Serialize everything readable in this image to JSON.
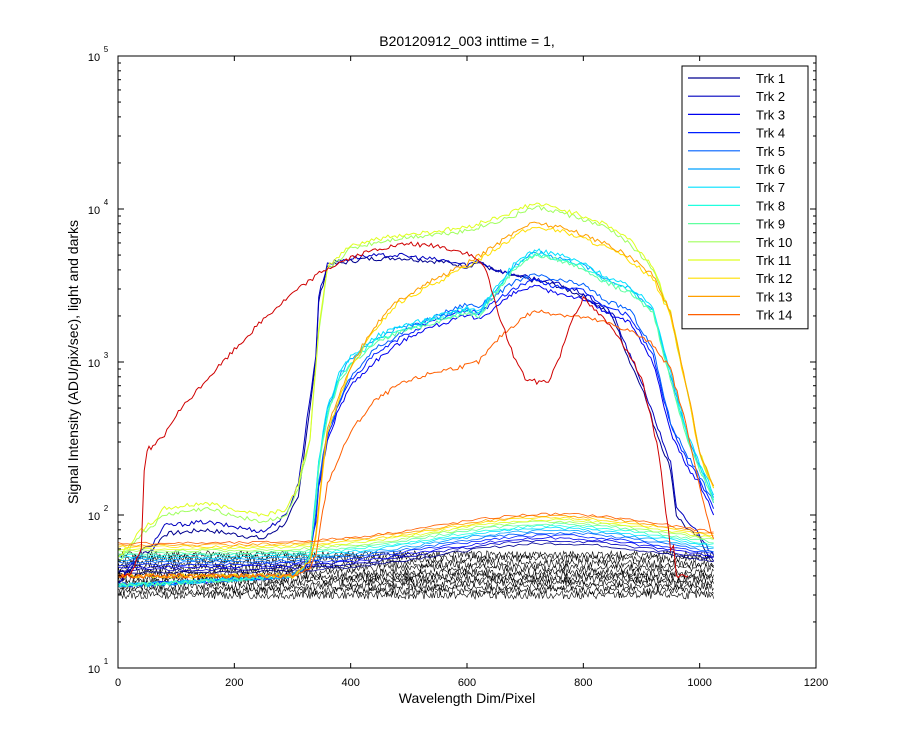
{
  "chart_data": {
    "type": "line",
    "title": "B20120912_003 inttime = 1,",
    "xlabel": "Wavelength Dim/Pixel",
    "ylabel": "Signal Intensity (ADU/pix/sec), light and darks",
    "xlim": [
      0,
      1200
    ],
    "ylim": [
      10,
      100000
    ],
    "yscale": "log",
    "grid": false,
    "legend_position": "top-right",
    "x_ticks": [
      "0",
      "200",
      "400",
      "600",
      "800",
      "1000",
      "1200"
    ],
    "y_ticks": [
      {
        "base": "10",
        "exp": "1"
      },
      {
        "base": "10",
        "exp": "2"
      },
      {
        "base": "10",
        "exp": "3"
      },
      {
        "base": "10",
        "exp": "4"
      },
      {
        "base": "10",
        "exp": "5"
      }
    ],
    "series": [
      {
        "name": "Trk 1",
        "color": "#00008f",
        "x": [
          0,
          40,
          60,
          80,
          150,
          250,
          290,
          300,
          310,
          340,
          345,
          360,
          380,
          420,
          480,
          560,
          600,
          620,
          650,
          700,
          750,
          800,
          850,
          880,
          900,
          920,
          940,
          950,
          960,
          980,
          1000,
          1015,
          1024
        ],
        "y": [
          35,
          55,
          60,
          75,
          80,
          70,
          90,
          110,
          130,
          1000,
          2500,
          4200,
          4400,
          4700,
          4800,
          4500,
          4200,
          4500,
          3900,
          3500,
          3200,
          2700,
          2000,
          1000,
          700,
          400,
          250,
          200,
          100,
          80,
          70,
          55,
          50
        ]
      },
      {
        "name": "Trk 2",
        "color": "#0000bf",
        "x": [
          0,
          40,
          60,
          80,
          150,
          250,
          290,
          300,
          310,
          340,
          345,
          360,
          380,
          420,
          480,
          560,
          600,
          620,
          650,
          700,
          750,
          800,
          850,
          880,
          900,
          920,
          940,
          950,
          960,
          980,
          1000,
          1015,
          1024
        ],
        "y": [
          36,
          58,
          65,
          85,
          90,
          78,
          100,
          130,
          160,
          1100,
          2700,
          4400,
          4600,
          4900,
          5000,
          4600,
          4300,
          4600,
          4000,
          3600,
          3300,
          2800,
          2100,
          1100,
          750,
          450,
          280,
          220,
          110,
          90,
          75,
          60,
          55
        ]
      },
      {
        "name": "Trk 3",
        "color": "#0000ef",
        "x": [
          0,
          40,
          300,
          320,
          330,
          340,
          345,
          360,
          380,
          400,
          440,
          480,
          520,
          560,
          600,
          620,
          650,
          680,
          700,
          720,
          740,
          760,
          800,
          840,
          880,
          920,
          950,
          980,
          1000,
          1015,
          1024
        ],
        "y": [
          35,
          35,
          40,
          45,
          55,
          90,
          150,
          300,
          500,
          700,
          1000,
          1300,
          1600,
          1800,
          2000,
          1900,
          2300,
          2800,
          3000,
          3100,
          2900,
          2800,
          2600,
          2100,
          1800,
          1000,
          350,
          200,
          160,
          120,
          100
        ]
      },
      {
        "name": "Trk 4",
        "color": "#0020ff",
        "x": [
          0,
          40,
          300,
          320,
          330,
          340,
          345,
          360,
          380,
          400,
          440,
          480,
          520,
          560,
          600,
          620,
          650,
          680,
          700,
          720,
          740,
          760,
          800,
          840,
          880,
          920,
          950,
          980,
          1000,
          1015,
          1024
        ],
        "y": [
          35,
          35,
          40,
          45,
          55,
          95,
          160,
          320,
          540,
          760,
          1100,
          1400,
          1700,
          1950,
          2200,
          2100,
          2500,
          3000,
          3300,
          3400,
          3200,
          3100,
          2900,
          2300,
          2000,
          1100,
          380,
          220,
          170,
          130,
          110
        ]
      },
      {
        "name": "Trk 5",
        "color": "#0060ff",
        "x": [
          0,
          40,
          300,
          320,
          330,
          340,
          345,
          360,
          380,
          400,
          440,
          480,
          520,
          560,
          600,
          620,
          650,
          680,
          700,
          720,
          740,
          760,
          800,
          840,
          880,
          920,
          950,
          980,
          1000,
          1015,
          1024
        ],
        "y": [
          35,
          35,
          40,
          45,
          55,
          100,
          170,
          340,
          560,
          800,
          1200,
          1500,
          1800,
          2100,
          2400,
          2300,
          2750,
          3300,
          3600,
          3700,
          3500,
          3400,
          3200,
          2500,
          2200,
          1200,
          400,
          240,
          180,
          140,
          120
        ]
      },
      {
        "name": "Trk 6",
        "color": "#00a0ff",
        "x": [
          0,
          40,
          300,
          320,
          330,
          340,
          345,
          360,
          380,
          400,
          440,
          480,
          520,
          560,
          600,
          620,
          650,
          680,
          700,
          720,
          740,
          760,
          800,
          840,
          880,
          920,
          950,
          980,
          1000,
          1015,
          1024
        ],
        "y": [
          35,
          35,
          40,
          45,
          55,
          130,
          220,
          480,
          800,
          1050,
          1400,
          1650,
          1800,
          2000,
          2200,
          2100,
          3000,
          4200,
          4800,
          5200,
          5000,
          4800,
          4300,
          3500,
          3000,
          2200,
          800,
          320,
          210,
          160,
          130
        ]
      },
      {
        "name": "Trk 7",
        "color": "#00e0ff",
        "x": [
          0,
          40,
          300,
          320,
          330,
          340,
          345,
          360,
          380,
          400,
          440,
          480,
          520,
          560,
          600,
          620,
          650,
          680,
          700,
          720,
          740,
          760,
          800,
          840,
          880,
          920,
          950,
          980,
          1000,
          1015,
          1024
        ],
        "y": [
          35,
          35,
          40,
          45,
          55,
          135,
          230,
          500,
          830,
          1080,
          1450,
          1700,
          1850,
          2050,
          2300,
          2150,
          3100,
          4300,
          5000,
          5400,
          5200,
          5000,
          4400,
          3600,
          3100,
          2300,
          850,
          330,
          220,
          165,
          135
        ]
      },
      {
        "name": "Trk 8",
        "color": "#20ffdf",
        "x": [
          0,
          40,
          300,
          320,
          330,
          340,
          345,
          360,
          380,
          400,
          440,
          480,
          520,
          560,
          600,
          620,
          650,
          680,
          700,
          720,
          740,
          760,
          800,
          840,
          880,
          920,
          950,
          980,
          1000,
          1015,
          1024
        ],
        "y": [
          35,
          35,
          40,
          45,
          55,
          125,
          210,
          460,
          770,
          1000,
          1350,
          1600,
          1750,
          1950,
          2150,
          2050,
          2900,
          4100,
          4700,
          5100,
          4900,
          4700,
          4200,
          3400,
          2900,
          2150,
          780,
          310,
          205,
          155,
          125
        ]
      },
      {
        "name": "Trk 9",
        "color": "#60ff9f",
        "x": [
          0,
          40,
          300,
          320,
          330,
          340,
          345,
          360,
          380,
          400,
          440,
          480,
          520,
          560,
          600,
          620,
          650,
          680,
          700,
          720,
          740,
          760,
          800,
          840,
          880,
          920,
          950,
          980,
          1000,
          1015,
          1024
        ],
        "y": [
          35,
          35,
          40,
          45,
          55,
          120,
          200,
          440,
          740,
          960,
          1300,
          1550,
          1700,
          1900,
          2100,
          2000,
          2800,
          4000,
          4600,
          5000,
          4800,
          4600,
          4100,
          3300,
          2800,
          2100,
          760,
          300,
          200,
          150,
          120
        ]
      },
      {
        "name": "Trk 10",
        "color": "#a0ff5f",
        "x": [
          0,
          40,
          60,
          80,
          150,
          250,
          290,
          300,
          310,
          330,
          345,
          360,
          400,
          440,
          480,
          540,
          600,
          640,
          680,
          700,
          720,
          760,
          800,
          840,
          880,
          920,
          950,
          980,
          1000,
          1015,
          1024
        ],
        "y": [
          50,
          75,
          85,
          100,
          110,
          90,
          100,
          120,
          150,
          300,
          1500,
          4000,
          5500,
          6000,
          6400,
          6800,
          7200,
          8000,
          9000,
          9800,
          10200,
          9500,
          8500,
          7500,
          6000,
          4000,
          2000,
          600,
          250,
          180,
          150
        ]
      },
      {
        "name": "Trk 11",
        "color": "#dfff20",
        "x": [
          0,
          40,
          60,
          80,
          150,
          250,
          290,
          300,
          310,
          330,
          345,
          360,
          400,
          440,
          480,
          540,
          600,
          640,
          680,
          700,
          720,
          760,
          800,
          840,
          880,
          920,
          950,
          980,
          1000,
          1015,
          1024
        ],
        "y": [
          52,
          80,
          90,
          110,
          120,
          100,
          110,
          130,
          160,
          320,
          1600,
          4200,
          5800,
          6300,
          6700,
          7100,
          7600,
          8500,
          9600,
          10400,
          10800,
          10000,
          9000,
          7900,
          6300,
          4200,
          2100,
          620,
          260,
          185,
          155
        ]
      },
      {
        "name": "Trk 12",
        "color": "#ffdf00",
        "x": [
          0,
          300,
          320,
          330,
          340,
          360,
          400,
          440,
          480,
          540,
          600,
          640,
          680,
          700,
          720,
          760,
          800,
          840,
          880,
          920,
          950,
          980,
          1000,
          1015,
          1024
        ],
        "y": [
          40,
          40,
          45,
          50,
          70,
          350,
          900,
          1600,
          2400,
          3200,
          4200,
          5200,
          6600,
          7200,
          7600,
          7200,
          6400,
          5600,
          4600,
          3500,
          2000,
          600,
          250,
          180,
          150
        ]
      },
      {
        "name": "Trk 13",
        "color": "#ff9f00",
        "x": [
          0,
          300,
          320,
          330,
          340,
          360,
          400,
          440,
          480,
          540,
          600,
          640,
          680,
          700,
          720,
          760,
          800,
          840,
          880,
          920,
          950,
          980,
          1000,
          1015,
          1024
        ],
        "y": [
          40,
          40,
          45,
          50,
          75,
          380,
          950,
          1700,
          2500,
          3400,
          4400,
          5500,
          7000,
          7800,
          8200,
          7600,
          6800,
          5900,
          4900,
          3700,
          2100,
          620,
          260,
          185,
          155
        ]
      },
      {
        "name": "Trk 14",
        "color": "#ff5f00",
        "x": [
          0,
          300,
          320,
          330,
          340,
          360,
          400,
          440,
          480,
          540,
          600,
          620,
          660,
          700,
          720,
          760,
          800,
          840,
          880,
          920,
          950,
          980,
          1000,
          1015,
          1024
        ],
        "y": [
          40,
          40,
          42,
          44,
          55,
          160,
          350,
          550,
          700,
          850,
          950,
          1000,
          1500,
          2000,
          2150,
          2050,
          1950,
          1800,
          1600,
          1300,
          900,
          350,
          150,
          90,
          70
        ]
      },
      {
        "name": "",
        "color": "#cf0000",
        "x": [
          0,
          20,
          40,
          45,
          50,
          60,
          80,
          100,
          150,
          200,
          250,
          300,
          350,
          400,
          450,
          500,
          550,
          600,
          630,
          650,
          680,
          700,
          720,
          740,
          760,
          780,
          800,
          830,
          860,
          900,
          930,
          950,
          955,
          960,
          970,
          980
        ],
        "y": [
          40,
          40,
          60,
          200,
          270,
          280,
          330,
          450,
          750,
          1200,
          1900,
          2800,
          3900,
          4800,
          5500,
          5900,
          5700,
          5100,
          4300,
          2300,
          1100,
          780,
          740,
          750,
          1100,
          1900,
          2600,
          2000,
          1500,
          800,
          250,
          60,
          65,
          40,
          40,
          40
        ]
      }
    ],
    "darks": [
      30,
      32,
      34,
      36,
      38,
      40,
      42,
      45,
      48,
      52,
      55
    ]
  }
}
